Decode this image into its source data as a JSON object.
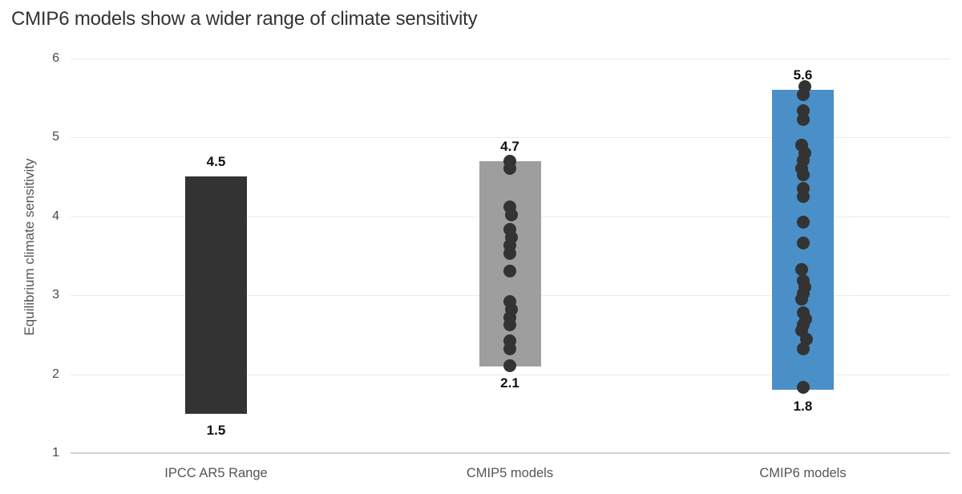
{
  "chart_data": {
    "type": "bar",
    "subtype": "floating-range-columns-with-dot-overlay",
    "title": "CMIP6 models show a wider range of climate sensitivity",
    "xlabel": "",
    "ylabel": "Equilibrium climate sensitivity",
    "ylim": [
      1,
      6
    ],
    "yticks": [
      1,
      2,
      3,
      4,
      5,
      6
    ],
    "grid": true,
    "legend": "none",
    "categories": [
      "IPCC AR5 Range",
      "CMIP5 models",
      "CMIP6 models"
    ],
    "series": [
      {
        "name": "IPCC AR5 Range",
        "range": [
          1.5,
          4.5
        ],
        "low_label": "1.5",
        "high_label": "4.5",
        "color": "#333333",
        "points": [],
        "points_dx": []
      },
      {
        "name": "CMIP5 models",
        "range": [
          2.1,
          4.7
        ],
        "low_label": "2.1",
        "high_label": "4.7",
        "color": "#9e9e9e",
        "points": [
          4.7,
          4.6,
          4.12,
          4.02,
          3.83,
          3.73,
          3.63,
          3.53,
          3.3,
          2.92,
          2.82,
          2.72,
          2.62,
          2.42,
          2.32,
          2.11
        ],
        "points_dx": [
          0,
          0,
          0,
          2,
          0,
          2,
          0,
          0,
          0,
          0,
          2,
          0,
          0,
          0,
          0,
          0
        ]
      },
      {
        "name": "CMIP6 models",
        "range": [
          1.8,
          5.6
        ],
        "low_label": "1.8",
        "high_label": "5.6",
        "color": "#4a8fc7",
        "points": [
          5.64,
          5.54,
          5.34,
          5.22,
          4.9,
          4.8,
          4.71,
          4.6,
          4.52,
          4.35,
          4.25,
          3.92,
          3.66,
          3.32,
          3.18,
          3.1,
          3.02,
          2.95,
          2.78,
          2.7,
          2.62,
          2.55,
          2.44,
          2.32,
          1.83
        ],
        "points_dx": [
          2,
          0,
          0,
          0,
          -2,
          2,
          0,
          -2,
          0,
          0,
          0,
          0,
          0,
          -2,
          0,
          2,
          0,
          -2,
          0,
          3,
          0,
          -2,
          4,
          0,
          0
        ]
      }
    ],
    "point_color": "#333333",
    "colors": {
      "grid": "#ebebeb",
      "baseline": "#ccd3da",
      "title": "#333333",
      "axis_text": "#4a4a4a",
      "category_text": "#555555",
      "value_label": "#111111"
    }
  }
}
